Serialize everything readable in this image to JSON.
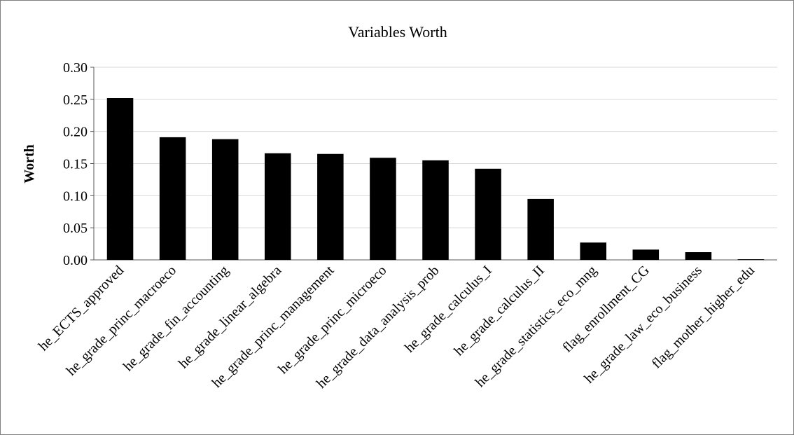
{
  "chart_data": {
    "type": "bar",
    "title": "Variables Worth",
    "xlabel": "",
    "ylabel": "Worth",
    "ylim": [
      0,
      0.3
    ],
    "yticks": [
      "0.30",
      "0.25",
      "0.20",
      "0.15",
      "0.10",
      "0.05",
      "0.00"
    ],
    "grid": true,
    "bar_color": "#000000",
    "categories": [
      "he_ECTS_approved",
      "he_grade_princ_macroeco",
      "he_grade_fin_accounting",
      "he_grade_linear_algebra",
      "he_grade_princ_management",
      "he_grade_princ_microeco",
      "he_grade_data_analysis_prob",
      "he_grade_calculus_I",
      "he_grade_calculus_II",
      "he_grade_statistics_eco_mng",
      "flag_enrollment_CG",
      "he_grade_law_eco_business",
      "flag_mother_higher_edu"
    ],
    "values": [
      0.252,
      0.191,
      0.188,
      0.166,
      0.165,
      0.159,
      0.155,
      0.142,
      0.095,
      0.027,
      0.016,
      0.012,
      0.001
    ]
  }
}
